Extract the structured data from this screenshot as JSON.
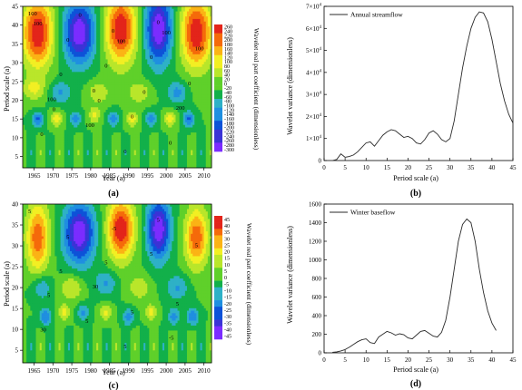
{
  "palette": {
    "ramp": [
      "#7b2cff",
      "#3b33d6",
      "#0d52d8",
      "#1f8fe0",
      "#2eb1c6",
      "#12b04a",
      "#5fd02a",
      "#b9e62a",
      "#f2ef23",
      "#fbb315",
      "#f56a0a",
      "#e3241a"
    ],
    "curve": "#2a2a2a"
  },
  "panel_a": {
    "xlabel": "Year (a)",
    "ylabel": "Period scale (a)",
    "colorbar_label": "Wavelet real part coefficient (dimensionless)",
    "colorbar_ticks": [
      "260",
      "240",
      "220",
      "200",
      "180",
      "160",
      "140",
      "120",
      "100",
      "80",
      "60",
      "40",
      "20",
      "0",
      "-20",
      "-40",
      "-60",
      "-80",
      "-100",
      "-120",
      "-140",
      "-160",
      "-180",
      "-200",
      "-220",
      "-240",
      "-260",
      "-280",
      "-300"
    ],
    "contour_labels": [
      "100",
      "0",
      "0",
      "100",
      "0",
      "200",
      "0",
      "0",
      "100",
      "100",
      "0",
      "0",
      "0",
      "0",
      "0",
      "0",
      "0",
      "0",
      "0",
      "100",
      "0",
      "100",
      "0",
      "100"
    ],
    "caption": "(a)"
  },
  "panel_c": {
    "xlabel": "Year (a)",
    "ylabel": "Period scale (a)",
    "colorbar_label": "Wavelet real part coefficient (dimensionless)",
    "colorbar_ticks": [
      "45",
      "40",
      "35",
      "30",
      "25",
      "20",
      "15",
      "10",
      "5",
      "0",
      "-5",
      "-10",
      "-15",
      "-20",
      "-25",
      "-30",
      "-35",
      "-40",
      "-45"
    ],
    "contour_labels": [
      "5",
      "30",
      "5",
      "5",
      "-5",
      "5",
      "5",
      "5",
      "5",
      "5",
      "5",
      "30",
      "5",
      "-5",
      "5",
      "5"
    ],
    "caption": "(c)"
  },
  "panel_b": {
    "xlabel": "Period scale (a)",
    "ylabel": "Wavelet variance (dimensionless)",
    "ytick_exp": "4",
    "caption": "(b)"
  },
  "panel_d": {
    "xlabel": "Period scale (a)",
    "ylabel": "Wavelet variance (dimensionless)",
    "caption": "(d)"
  },
  "chart_data": [
    {
      "type": "heatmap",
      "title": "",
      "xlabel": "Year (a)",
      "ylabel": "Period scale (a)",
      "xlim": [
        1962,
        2012
      ],
      "ylim": [
        2,
        45
      ],
      "x_ticks": [
        1965,
        1970,
        1975,
        1980,
        1985,
        1990,
        1995,
        2000,
        2005,
        2010
      ],
      "y_ticks": [
        5,
        10,
        15,
        20,
        25,
        30,
        35,
        40,
        45
      ],
      "colorbar_range": [
        -300,
        270
      ],
      "blobs": [
        {
          "x": 1966,
          "y": 38,
          "v": 1.0,
          "sx": 4,
          "sy": 9
        },
        {
          "x": 1977,
          "y": 38,
          "v": -1.0,
          "sx": 4,
          "sy": 8
        },
        {
          "x": 1988,
          "y": 39,
          "v": 1.0,
          "sx": 4,
          "sy": 9
        },
        {
          "x": 1998,
          "y": 39,
          "v": -1.0,
          "sx": 3.5,
          "sy": 9
        },
        {
          "x": 2008,
          "y": 38,
          "v": 1.0,
          "sx": 4,
          "sy": 9
        },
        {
          "x": 1965,
          "y": 23,
          "v": 0.35,
          "sx": 3,
          "sy": 3
        },
        {
          "x": 1972,
          "y": 22,
          "v": -0.35,
          "sx": 3,
          "sy": 3
        },
        {
          "x": 1982,
          "y": 22,
          "v": 0.3,
          "sx": 3,
          "sy": 3
        },
        {
          "x": 1993,
          "y": 22,
          "v": 0.3,
          "sx": 3,
          "sy": 3
        },
        {
          "x": 2003,
          "y": 22,
          "v": -0.4,
          "sx": 2.5,
          "sy": 3
        },
        {
          "x": 1966,
          "y": 15,
          "v": -0.55,
          "sx": 1.5,
          "sy": 2
        },
        {
          "x": 1971,
          "y": 15,
          "v": 0.45,
          "sx": 1.5,
          "sy": 2
        },
        {
          "x": 1976,
          "y": 15,
          "v": -0.45,
          "sx": 1.5,
          "sy": 2
        },
        {
          "x": 1981,
          "y": 16,
          "v": 0.4,
          "sx": 1.5,
          "sy": 2
        },
        {
          "x": 1986,
          "y": 15,
          "v": -0.45,
          "sx": 1.5,
          "sy": 2
        },
        {
          "x": 1991,
          "y": 15,
          "v": 0.45,
          "sx": 1.5,
          "sy": 2
        },
        {
          "x": 1996,
          "y": 15,
          "v": -0.45,
          "sx": 1.5,
          "sy": 2
        },
        {
          "x": 2001,
          "y": 15,
          "v": 0.45,
          "sx": 1.5,
          "sy": 2
        },
        {
          "x": 2006,
          "y": 15,
          "v": -0.55,
          "sx": 1.5,
          "sy": 2
        }
      ]
    },
    {
      "type": "line",
      "title": "",
      "xlabel": "Period scale (a)",
      "ylabel": "Wavelet variance (dimensionless)",
      "xlim": [
        0,
        45
      ],
      "ylim": [
        0,
        70000
      ],
      "x_ticks": [
        0,
        5,
        10,
        15,
        20,
        25,
        30,
        35,
        40,
        45
      ],
      "y_ticks": [
        0,
        10000,
        20000,
        30000,
        40000,
        50000,
        60000,
        70000
      ],
      "legend": "top-left",
      "series": [
        {
          "name": "Annual streamflow",
          "x": [
            2,
            3,
            4,
            5,
            6,
            7,
            8,
            9,
            10,
            11,
            12,
            13,
            14,
            15,
            16,
            17,
            18,
            19,
            20,
            21,
            22,
            23,
            24,
            25,
            26,
            27,
            28,
            29,
            30,
            31,
            32,
            33,
            34,
            35,
            36,
            37,
            38,
            39,
            40,
            41,
            42,
            43,
            44,
            45
          ],
          "values": [
            0,
            500,
            3000,
            1500,
            1800,
            2500,
            4000,
            6000,
            8000,
            8500,
            6500,
            9000,
            11500,
            13000,
            14000,
            13500,
            12000,
            10500,
            11000,
            10000,
            8000,
            7500,
            9500,
            12500,
            13500,
            12000,
            9500,
            8500,
            10000,
            18000,
            30000,
            42000,
            52000,
            60000,
            65000,
            67500,
            67000,
            63000,
            55000,
            45000,
            35000,
            27000,
            21000,
            17000
          ]
        }
      ]
    },
    {
      "type": "heatmap",
      "title": "",
      "xlabel": "Year (a)",
      "ylabel": "Period scale (a)",
      "xlim": [
        1962,
        2012
      ],
      "ylim": [
        2,
        40
      ],
      "x_ticks": [
        1965,
        1970,
        1975,
        1980,
        1985,
        1990,
        1995,
        2000,
        2005,
        2010
      ],
      "y_ticks": [
        5,
        10,
        15,
        20,
        25,
        30,
        35,
        40
      ],
      "colorbar_range": [
        -45,
        50
      ],
      "blobs": [
        {
          "x": 1966,
          "y": 32,
          "v": 0.8,
          "sx": 3,
          "sy": 8
        },
        {
          "x": 1977,
          "y": 33,
          "v": -1.0,
          "sx": 4,
          "sy": 7
        },
        {
          "x": 1988,
          "y": 34,
          "v": 1.0,
          "sx": 3.5,
          "sy": 7
        },
        {
          "x": 1998,
          "y": 34,
          "v": -1.0,
          "sx": 3,
          "sy": 7
        },
        {
          "x": 2008,
          "y": 32,
          "v": 0.8,
          "sx": 3,
          "sy": 7
        },
        {
          "x": 1967,
          "y": 20,
          "v": -0.35,
          "sx": 2.5,
          "sy": 3
        },
        {
          "x": 1975,
          "y": 20,
          "v": 0.35,
          "sx": 3,
          "sy": 3
        },
        {
          "x": 1984,
          "y": 21,
          "v": -0.35,
          "sx": 3,
          "sy": 3
        },
        {
          "x": 1993,
          "y": 20,
          "v": 0.3,
          "sx": 3,
          "sy": 3
        },
        {
          "x": 2003,
          "y": 20,
          "v": -0.35,
          "sx": 3,
          "sy": 3
        },
        {
          "x": 1968,
          "y": 13,
          "v": -0.5,
          "sx": 1.5,
          "sy": 2
        },
        {
          "x": 1973,
          "y": 14,
          "v": 0.4,
          "sx": 1.5,
          "sy": 2
        },
        {
          "x": 1978,
          "y": 14,
          "v": -0.4,
          "sx": 1.5,
          "sy": 2
        },
        {
          "x": 1984,
          "y": 14,
          "v": 0.4,
          "sx": 1.5,
          "sy": 2
        },
        {
          "x": 1990,
          "y": 13,
          "v": -0.45,
          "sx": 1.5,
          "sy": 2
        },
        {
          "x": 1996,
          "y": 14,
          "v": 0.4,
          "sx": 1.5,
          "sy": 2
        },
        {
          "x": 2002,
          "y": 13,
          "v": -0.45,
          "sx": 1.5,
          "sy": 2
        },
        {
          "x": 2007,
          "y": 13,
          "v": -0.5,
          "sx": 1.5,
          "sy": 2
        }
      ]
    },
    {
      "type": "line",
      "title": "",
      "xlabel": "Period scale (a)",
      "ylabel": "Wavelet variance (dimensionless)",
      "xlim": [
        0,
        45
      ],
      "ylim": [
        0,
        1600
      ],
      "x_ticks": [
        0,
        5,
        10,
        15,
        20,
        25,
        30,
        35,
        40,
        45
      ],
      "y_ticks": [
        0,
        200,
        400,
        600,
        800,
        1000,
        1200,
        1400,
        1600
      ],
      "legend": "top-left",
      "series": [
        {
          "name": "Winter baseflow",
          "x": [
            2,
            3,
            4,
            5,
            6,
            7,
            8,
            9,
            10,
            11,
            12,
            13,
            14,
            15,
            16,
            17,
            18,
            19,
            20,
            21,
            22,
            23,
            24,
            25,
            26,
            27,
            28,
            29,
            30,
            31,
            32,
            33,
            34,
            35,
            36,
            37,
            38,
            39,
            40,
            41
          ],
          "values": [
            5,
            10,
            20,
            35,
            60,
            90,
            120,
            140,
            150,
            110,
            100,
            170,
            200,
            230,
            215,
            190,
            205,
            195,
            160,
            150,
            190,
            230,
            240,
            210,
            180,
            170,
            220,
            350,
            600,
            900,
            1200,
            1380,
            1440,
            1400,
            1200,
            900,
            650,
            450,
            320,
            240
          ]
        }
      ]
    }
  ]
}
